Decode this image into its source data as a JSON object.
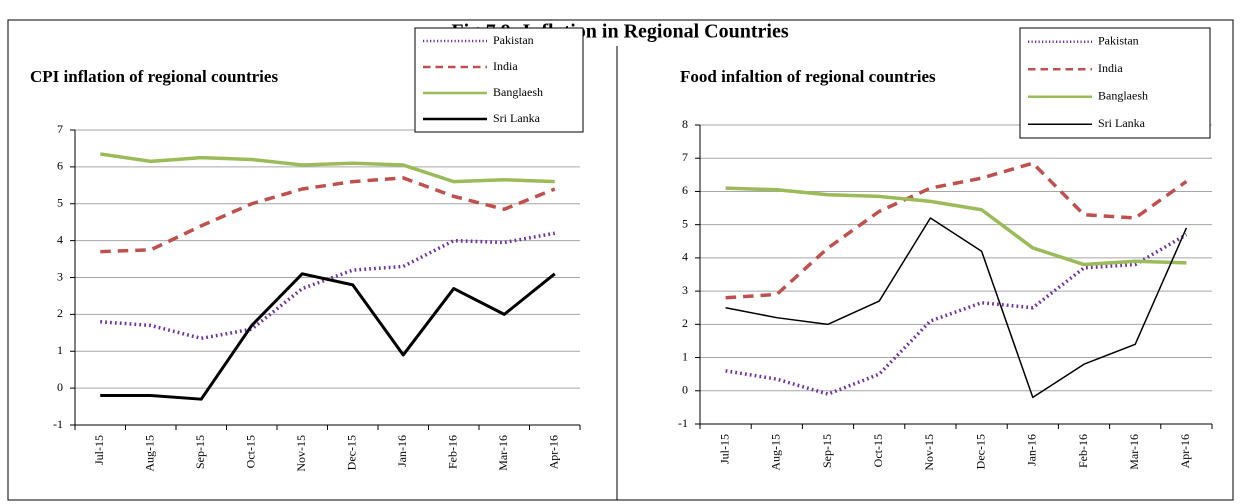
{
  "title": "Fig-7.9: Inflation in Regional Countries",
  "chart_data": [
    {
      "type": "line",
      "title": "CPI inflation of regional countries",
      "categories": [
        "Jul-15",
        "Aug-15",
        "Sep-15",
        "Oct-15",
        "Nov-15",
        "Dec-15",
        "Jan-16",
        "Feb-16",
        "Mar-16",
        "Apr-16"
      ],
      "ylim": [
        -1,
        7
      ],
      "yticks": [
        -1,
        0,
        1,
        2,
        3,
        4,
        5,
        6,
        7
      ],
      "grid": true,
      "legend": "top-right",
      "series": [
        {
          "name": "Pakistan",
          "color": "#7030a0",
          "line_style": "dotted",
          "line_width": 3.5,
          "values": [
            1.8,
            1.7,
            1.35,
            1.6,
            2.7,
            3.2,
            3.3,
            4.0,
            3.95,
            4.2
          ]
        },
        {
          "name": "India",
          "color": "#c0504d",
          "line_style": "dashed",
          "line_width": 3.5,
          "values": [
            3.7,
            3.75,
            4.4,
            5.0,
            5.4,
            5.6,
            5.7,
            5.2,
            4.85,
            5.4
          ]
        },
        {
          "name": "Banglaesh",
          "color": "#9bbb59",
          "line_style": "solid",
          "line_width": 3.5,
          "values": [
            6.35,
            6.15,
            6.25,
            6.2,
            6.05,
            6.1,
            6.05,
            5.6,
            5.65,
            5.6
          ]
        },
        {
          "name": "Sri Lanka",
          "color": "#000000",
          "line_style": "solid",
          "line_width": 3,
          "values": [
            -0.2,
            -0.2,
            -0.3,
            1.7,
            3.1,
            2.8,
            0.9,
            2.7,
            2.0,
            3.1
          ]
        }
      ]
    },
    {
      "type": "line",
      "title": "Food infaltion of regional countries",
      "categories": [
        "Jul-15",
        "Aug-15",
        "Sep-15",
        "Oct-15",
        "Nov-15",
        "Dec-15",
        "Jan-16",
        "Feb-16",
        "Mar-16",
        "Apr-16"
      ],
      "ylim": [
        -1,
        8
      ],
      "yticks": [
        -1,
        0,
        1,
        2,
        3,
        4,
        5,
        6,
        7,
        8
      ],
      "grid": true,
      "legend": "top-right",
      "series": [
        {
          "name": "Pakistan",
          "color": "#7030a0",
          "line_style": "dotted",
          "line_width": 3.5,
          "values": [
            0.6,
            0.35,
            -0.1,
            0.5,
            2.1,
            2.65,
            2.5,
            3.7,
            3.8,
            4.7
          ]
        },
        {
          "name": "India",
          "color": "#c0504d",
          "line_style": "dashed",
          "line_width": 3.5,
          "values": [
            2.8,
            2.9,
            4.3,
            5.4,
            6.1,
            6.4,
            6.85,
            5.3,
            5.2,
            6.3
          ]
        },
        {
          "name": "Banglaesh",
          "color": "#9bbb59",
          "line_style": "solid",
          "line_width": 3.5,
          "values": [
            6.1,
            6.05,
            5.9,
            5.85,
            5.7,
            5.45,
            4.3,
            3.8,
            3.9,
            3.85
          ]
        },
        {
          "name": "Sri Lanka",
          "color": "#000000",
          "line_style": "solid",
          "line_width": 1.5,
          "values": [
            2.5,
            2.2,
            2.0,
            2.7,
            5.2,
            4.2,
            -0.2,
            0.8,
            1.4,
            4.9
          ]
        }
      ]
    }
  ]
}
